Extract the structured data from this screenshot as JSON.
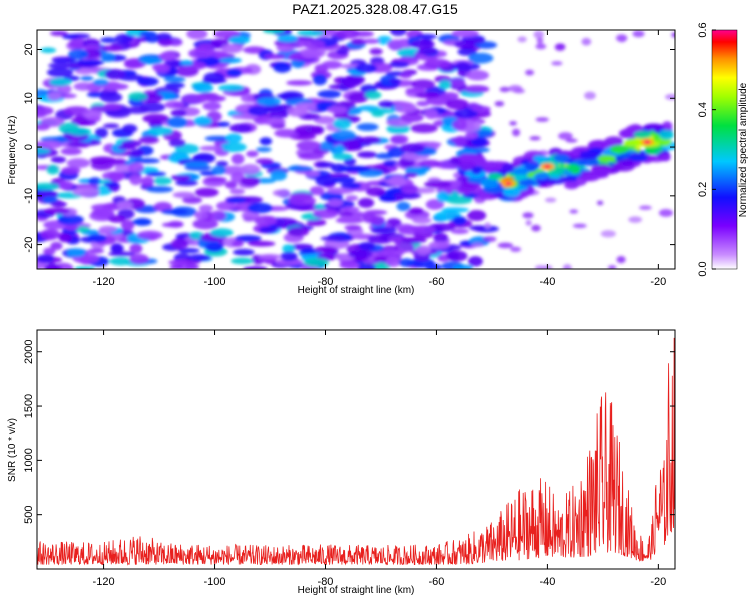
{
  "title": "PAZ1.2025.328.08.47.G15",
  "colors": {
    "line": "#e8201e",
    "axis": "#000000"
  },
  "chart_data": [
    {
      "type": "heatmap",
      "title": "PAZ1.2025.328.08.47.G15",
      "xlabel": "Height of straight line (km)",
      "ylabel": "Frequency (Hz)",
      "xlim": [
        -132,
        -17
      ],
      "ylim": [
        -25,
        24
      ],
      "xticks": [
        -120,
        -100,
        -80,
        -60,
        -40,
        -20
      ],
      "yticks": [
        -20,
        -10,
        0,
        10,
        20
      ],
      "colorbar": {
        "label": "Normalized spectral amplitude",
        "range": [
          0,
          0.6
        ],
        "ticks": [
          "0.0",
          "0.2",
          "0.4",
          "0.6"
        ],
        "colormap": "rainbow (purple-blue-cyan-green-yellow-red-magenta)"
      },
      "ridge": {
        "description": "signal ridge rising from about -8 Hz at -50 km to about +1 Hz at -18 km",
        "x": [
          -55,
          -50,
          -47,
          -44,
          -40,
          -36,
          -32,
          -28,
          -25,
          -22,
          -18
        ],
        "y": [
          -5,
          -7,
          -7.5,
          -6,
          -4,
          -4.5,
          -3,
          -2,
          0,
          1,
          1
        ],
        "amplitude": [
          0.25,
          0.35,
          0.55,
          0.4,
          0.5,
          0.4,
          0.35,
          0.4,
          0.45,
          0.55,
          0.35
        ]
      },
      "noise_region_km": [
        -132,
        -55
      ],
      "empty_region_km": [
        -55,
        -17
      ]
    },
    {
      "type": "line",
      "xlabel": "Height of straight line (km)",
      "ylabel": "SNR (10 * v/v)",
      "xlim": [
        -132,
        -17
      ],
      "ylim": [
        0,
        2200
      ],
      "xticks": [
        -120,
        -100,
        -80,
        -60,
        -40,
        -20
      ],
      "yticks": [
        500,
        1000,
        1500,
        2000
      ],
      "series": [
        {
          "name": "SNR",
          "description": "noisy trace ~100-250 from -132 to -58 km, rising envelope after -55 km",
          "x": [
            -132,
            -120,
            -113,
            -110,
            -100,
            -90,
            -80,
            -70,
            -60,
            -55,
            -50,
            -45,
            -42,
            -40,
            -38,
            -35,
            -32,
            -30,
            -28,
            -26,
            -24,
            -22,
            -21,
            -20,
            -19,
            -18,
            -17
          ],
          "y_max": [
            260,
            250,
            340,
            250,
            230,
            220,
            230,
            220,
            230,
            300,
            450,
            750,
            850,
            820,
            620,
            800,
            1250,
            1680,
            1500,
            900,
            400,
            250,
            500,
            1150,
            1000,
            2150,
            2200
          ],
          "y_min": [
            40,
            40,
            40,
            40,
            40,
            40,
            40,
            40,
            40,
            40,
            60,
            80,
            100,
            100,
            100,
            100,
            120,
            150,
            150,
            120,
            80,
            60,
            100,
            200,
            200,
            300,
            400
          ]
        }
      ]
    }
  ]
}
